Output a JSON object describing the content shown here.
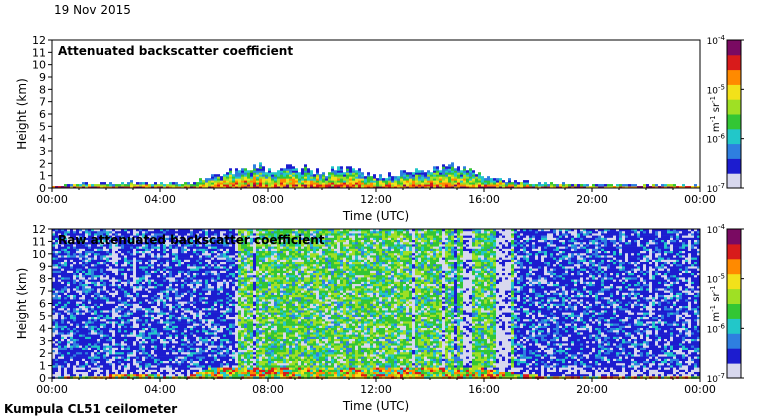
{
  "header": {
    "date": "19 Nov 2015"
  },
  "footer": {
    "instrument": "Kumpula CL51 ceilometer"
  },
  "chart_data": [
    {
      "type": "heatmap",
      "title": "Attenuated backscatter coefficient",
      "xlabel": "Time (UTC)",
      "ylabel": "Height (km)",
      "x_ticks": [
        "00:00",
        "04:00",
        "08:00",
        "12:00",
        "16:00",
        "20:00",
        "00:00"
      ],
      "xlim_hours": [
        0,
        24
      ],
      "y_ticks": [
        "0",
        "1",
        "2",
        "3",
        "4",
        "5",
        "6",
        "7",
        "8",
        "9",
        "10",
        "11",
        "12"
      ],
      "ylim": [
        0,
        12
      ],
      "colorbar": {
        "scale": "log",
        "range": [
          1e-07,
          0.0001
        ],
        "tick_labels": [
          "10",
          "10",
          "10",
          "10"
        ],
        "tick_exponents": [
          "-7",
          "-6",
          "-5",
          "-4"
        ],
        "unit": "m",
        "unit_exp1": "-1",
        "unit_mid": " sr",
        "unit_exp2": "-1"
      },
      "features": {
        "boundary_layer_top_km": [
          [
            0,
            0.1
          ],
          [
            1,
            0.3
          ],
          [
            2,
            0.3
          ],
          [
            3,
            0.4
          ],
          [
            4,
            0.3
          ],
          [
            5,
            0.3
          ],
          [
            6,
            1.0
          ],
          [
            7,
            1.5
          ],
          [
            8,
            1.6
          ],
          [
            9,
            1.5
          ],
          [
            10,
            1.2
          ],
          [
            11,
            1.4
          ],
          [
            12,
            1.0
          ],
          [
            13,
            1.1
          ],
          [
            14,
            1.4
          ],
          [
            15,
            1.6
          ],
          [
            16,
            0.8
          ],
          [
            17,
            0.5
          ],
          [
            18,
            0.3
          ],
          [
            19,
            0.25
          ],
          [
            20,
            0.2
          ],
          [
            21,
            0.2
          ],
          [
            22,
            0.2
          ],
          [
            23,
            0.2
          ],
          [
            24,
            0.15
          ]
        ]
      }
    },
    {
      "type": "heatmap",
      "title": "Raw attenuated backscatter coefficient",
      "xlabel": "Time (UTC)",
      "ylabel": "Height (km)",
      "x_ticks": [
        "00:00",
        "04:00",
        "08:00",
        "12:00",
        "16:00",
        "20:00",
        "00:00"
      ],
      "xlim_hours": [
        0,
        24
      ],
      "y_ticks": [
        "0",
        "1",
        "2",
        "3",
        "4",
        "5",
        "6",
        "7",
        "8",
        "9",
        "10",
        "11",
        "12"
      ],
      "ylim": [
        0,
        12
      ],
      "colorbar": {
        "scale": "log",
        "range": [
          1e-07,
          0.0001
        ],
        "tick_labels": [
          "10",
          "10",
          "10",
          "10"
        ],
        "tick_exponents": [
          "-7",
          "-6",
          "-5",
          "-4"
        ],
        "unit": "m",
        "unit_exp1": "-1",
        "unit_mid": " sr",
        "unit_exp2": "-1"
      },
      "features": {
        "strong_signal_hours": [
          [
            6.8,
            11.2
          ],
          [
            11.2,
            14.8
          ],
          [
            15.0,
            17.0
          ]
        ],
        "clear_column_hours": [
          [
            15.2,
            15.5
          ],
          [
            16.4,
            16.9
          ]
        ]
      }
    }
  ],
  "colors": {
    "colormap": [
      "#d8d8ee",
      "#1c1ccf",
      "#2e7fe0",
      "#22c7c9",
      "#33c634",
      "#9fe024",
      "#f2e11a",
      "#ff8a00",
      "#d81b1b",
      "#7a0a62"
    ]
  }
}
